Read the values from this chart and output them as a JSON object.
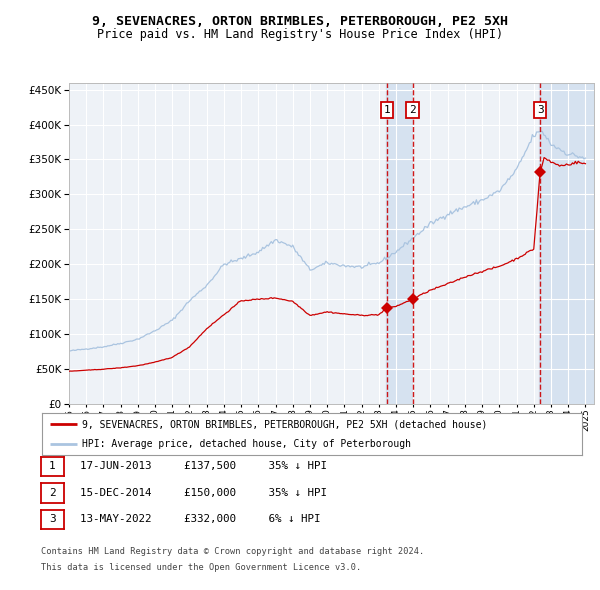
{
  "title": "9, SEVENACRES, ORTON BRIMBLES, PETERBOROUGH, PE2 5XH",
  "subtitle": "Price paid vs. HM Land Registry's House Price Index (HPI)",
  "ylim": [
    0,
    460000
  ],
  "yticks": [
    0,
    50000,
    100000,
    150000,
    200000,
    250000,
    300000,
    350000,
    400000,
    450000
  ],
  "legend_line1": "9, SEVENACRES, ORTON BRIMBLES, PETERBOROUGH, PE2 5XH (detached house)",
  "legend_line2": "HPI: Average price, detached house, City of Peterborough",
  "transaction_color": "#cc0000",
  "hpi_color": "#aac4e0",
  "footnote1": "Contains HM Land Registry data © Crown copyright and database right 2024.",
  "footnote2": "This data is licensed under the Open Government Licence v3.0.",
  "transactions": [
    {
      "num": 1,
      "date_label": "17-JUN-2013",
      "date_x": 2013.46,
      "price": 137500,
      "pct": "35%"
    },
    {
      "num": 2,
      "date_label": "15-DEC-2014",
      "date_x": 2014.96,
      "price": 150000,
      "pct": "35%"
    },
    {
      "num": 3,
      "date_label": "13-MAY-2022",
      "date_x": 2022.37,
      "price": 332000,
      "pct": "6%"
    }
  ],
  "background_color": "#ffffff",
  "plot_bg_color": "#eef2f7",
  "grid_color": "#ffffff",
  "shade_color": "#ccdcee",
  "xlim_start": 1995,
  "xlim_end": 2025.5
}
